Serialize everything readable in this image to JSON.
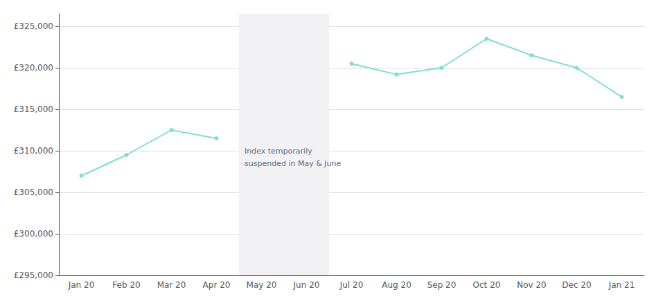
{
  "chart_data": {
    "type": "line",
    "categories": [
      "Jan 20",
      "Feb 20",
      "Mar 20",
      "Apr 20",
      "May 20",
      "Jun 20",
      "Jul 20",
      "Aug 20",
      "Sep 20",
      "Oct 20",
      "Nov 20",
      "Dec 20",
      "Jan 21"
    ],
    "values": [
      307000,
      309500,
      312500,
      311500,
      null,
      null,
      320500,
      319200,
      320000,
      323500,
      321500,
      320000,
      316500
    ],
    "color": "#7FDED1",
    "marker": "circle",
    "ylim": [
      295000,
      326500
    ],
    "yticks": [
      {
        "value": 295000,
        "label": "£295,000"
      },
      {
        "value": 300000,
        "label": "£300,000"
      },
      {
        "value": 305000,
        "label": "£305,000"
      },
      {
        "value": 310000,
        "label": "£310,000"
      },
      {
        "value": 315000,
        "label": "£315,000"
      },
      {
        "value": 320000,
        "label": "£320,000"
      },
      {
        "value": 325000,
        "label": "£325,000"
      }
    ],
    "grid": true,
    "annotations": [
      {
        "text": "Index temporarily\nsuspended in May & June",
        "span": [
          "May 20",
          "Jun 20"
        ],
        "color": "#F2F2F4",
        "text_color": "#5A6A80"
      }
    ]
  }
}
